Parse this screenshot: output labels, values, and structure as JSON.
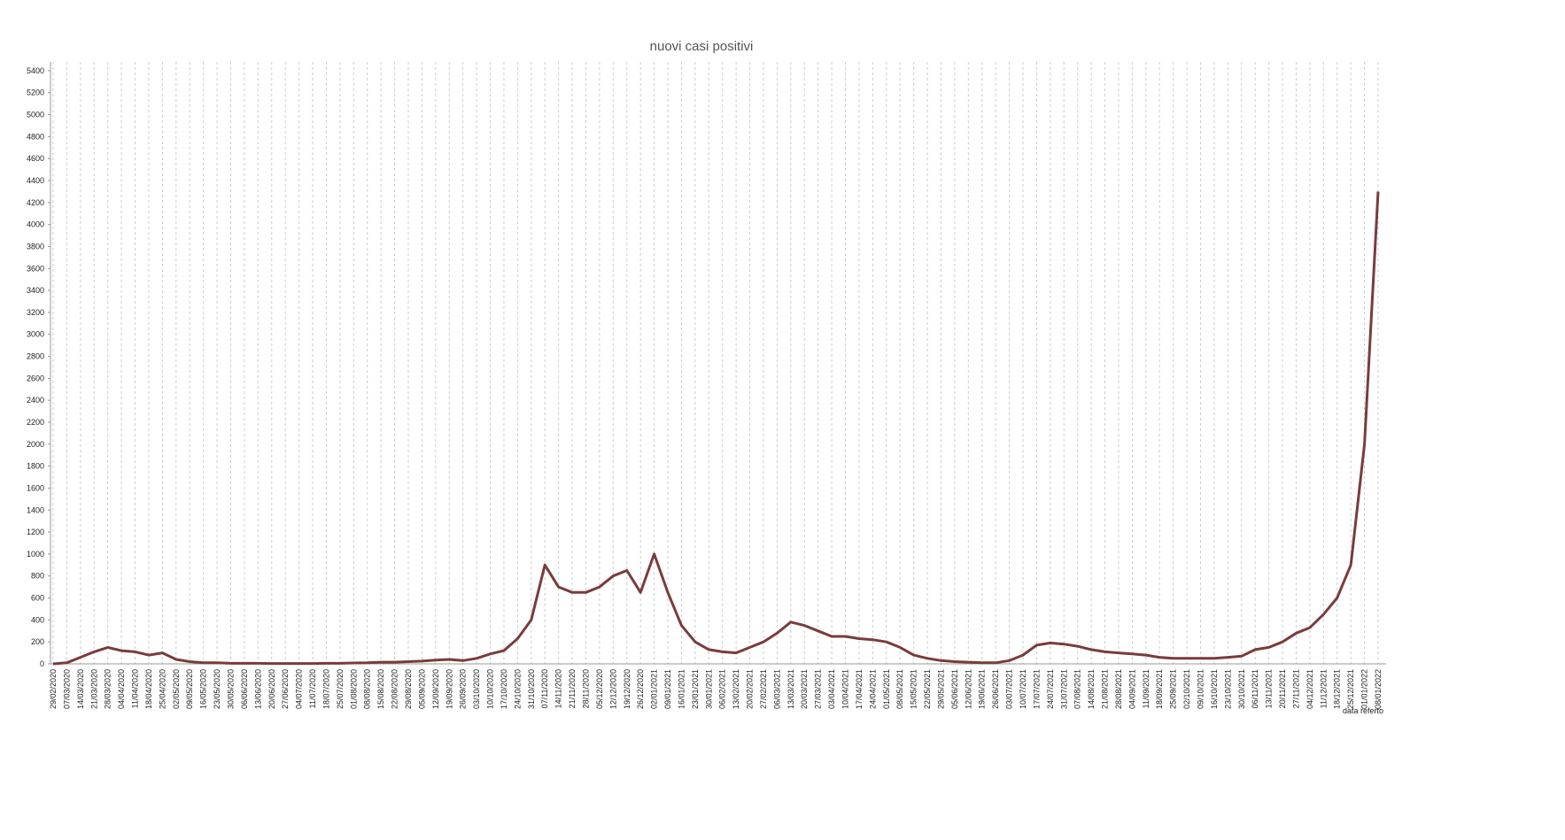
{
  "chart_data": {
    "type": "line",
    "title": "nuovi casi positivi",
    "x_label": "data referto",
    "categories": [
      "29/02/2020",
      "07/03/2020",
      "14/03/2020",
      "21/03/2020",
      "28/03/2020",
      "04/04/2020",
      "11/04/2020",
      "18/04/2020",
      "25/04/2020",
      "02/05/2020",
      "09/05/2020",
      "16/05/2020",
      "23/05/2020",
      "30/05/2020",
      "06/06/2020",
      "13/06/2020",
      "20/06/2020",
      "27/06/2020",
      "04/07/2020",
      "11/07/2020",
      "18/07/2020",
      "25/07/2020",
      "01/08/2020",
      "08/08/2020",
      "15/08/2020",
      "22/08/2020",
      "29/08/2020",
      "05/09/2020",
      "12/09/2020",
      "19/09/2020",
      "26/09/2020",
      "03/10/2020",
      "10/10/2020",
      "17/10/2020",
      "24/10/2020",
      "31/10/2020",
      "07/11/2020",
      "14/11/2020",
      "21/11/2020",
      "28/11/2020",
      "05/12/2020",
      "12/12/2020",
      "19/12/2020",
      "26/12/2020",
      "02/01/2021",
      "09/01/2021",
      "16/01/2021",
      "23/01/2021",
      "30/01/2021",
      "06/02/2021",
      "13/02/2021",
      "20/02/2021",
      "27/02/2021",
      "06/03/2021",
      "13/03/2021",
      "20/03/2021",
      "27/03/2021",
      "03/04/2021",
      "10/04/2021",
      "17/04/2021",
      "24/04/2021",
      "01/05/2021",
      "08/05/2021",
      "15/05/2021",
      "22/05/2021",
      "29/05/2021",
      "05/06/2021",
      "12/06/2021",
      "19/06/2021",
      "26/06/2021",
      "03/07/2021",
      "10/07/2021",
      "17/07/2021",
      "24/07/2021",
      "31/07/2021",
      "07/08/2021",
      "14/08/2021",
      "21/08/2021",
      "28/08/2021",
      "04/09/2021",
      "11/09/2021",
      "18/09/2021",
      "25/09/2021",
      "02/10/2021",
      "09/10/2021",
      "16/10/2021",
      "23/10/2021",
      "30/10/2021",
      "06/11/2021",
      "13/11/2021",
      "20/11/2021",
      "27/11/2021",
      "04/12/2021",
      "11/12/2021",
      "18/12/2021",
      "25/12/2021",
      "01/01/2022",
      "08/01/2022"
    ],
    "series": [
      {
        "name": "nuovi casi positivi",
        "color": "#7b3b3b",
        "values": [
          0,
          10,
          60,
          110,
          150,
          120,
          110,
          80,
          100,
          40,
          20,
          10,
          10,
          5,
          5,
          5,
          3,
          3,
          3,
          3,
          5,
          5,
          8,
          10,
          15,
          15,
          20,
          25,
          35,
          40,
          30,
          50,
          90,
          120,
          230,
          400,
          900,
          700,
          650,
          650,
          700,
          800,
          850,
          650,
          1000,
          650,
          350,
          200,
          130,
          110,
          100,
          150,
          200,
          280,
          380,
          350,
          300,
          250,
          250,
          230,
          220,
          200,
          150,
          80,
          50,
          30,
          20,
          15,
          10,
          10,
          30,
          80,
          170,
          190,
          180,
          160,
          130,
          110,
          100,
          90,
          80,
          60,
          50,
          50,
          50,
          50,
          60,
          70,
          130,
          150,
          200,
          280,
          330,
          450,
          600,
          900,
          2000,
          4300
        ]
      }
    ],
    "ylim": [
      0,
      5480
    ],
    "yticks": [
      0,
      200,
      400,
      600,
      800,
      1000,
      1200,
      1400,
      1600,
      1800,
      2000,
      2200,
      2400,
      2600,
      2800,
      3000,
      3200,
      3400,
      3600,
      3800,
      4000,
      4200,
      4400,
      4600,
      4800,
      5000,
      5200,
      5400
    ],
    "grid": true
  }
}
